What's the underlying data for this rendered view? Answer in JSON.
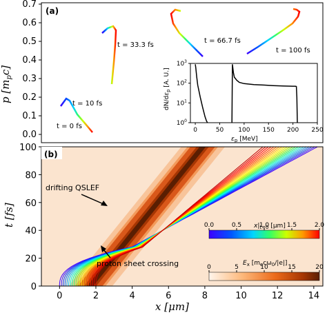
{
  "chart_data": [
    {
      "panel_label": "(a)",
      "type": "line",
      "ylabel": "p [m_pc]",
      "ylim": [
        0,
        0.7
      ],
      "yticks": [
        "0.0",
        "0.1",
        "0.2",
        "0.3",
        "0.4",
        "0.5",
        "0.6",
        "0.7"
      ],
      "phase_space_snapshots": [
        {
          "label": "t = 0 fs"
        },
        {
          "label": "t = 10 fs"
        },
        {
          "label": "t = 33.3 fs"
        },
        {
          "label": "t = 66.7 fs"
        },
        {
          "label": "t = 100 fs"
        }
      ],
      "colorscale": "rainbow"
    },
    {
      "panel_label": "inset",
      "type": "line",
      "xlabel": "ε_p [MeV]",
      "ylabel": "dN/dε_p [A. U.]",
      "yscale": "log",
      "xlim": [
        -10,
        250
      ],
      "ylim": [
        1,
        1000
      ],
      "xticks": [
        "0",
        "50",
        "100",
        "150",
        "200",
        "250"
      ],
      "yticks": [
        "10^0",
        "10^1",
        "10^2",
        "10^3"
      ],
      "series": [
        {
          "x": [
            0,
            1,
            3,
            5,
            10,
            15,
            20,
            23,
            25
          ],
          "y": [
            900,
            600,
            200,
            80,
            20,
            6,
            2,
            1.2,
            0.9
          ]
        },
        {
          "x": [
            75,
            76,
            78,
            80,
            85,
            90,
            100,
            120,
            140,
            160,
            180,
            200,
            205,
            207,
            208,
            209
          ],
          "y": [
            0.9,
            900,
            350,
            200,
            140,
            110,
            95,
            85,
            80,
            75,
            72,
            70,
            70,
            68,
            20,
            0.9
          ]
        }
      ]
    },
    {
      "panel_label": "(b)",
      "type": "heatmap",
      "xlabel": "x [μm]",
      "ylabel": "t [fs]",
      "xlim": [
        -1,
        14.5
      ],
      "ylim": [
        0,
        100
      ],
      "xticks": [
        "0",
        "2",
        "4",
        "6",
        "8",
        "10",
        "12",
        "14"
      ],
      "yticks": [
        "0",
        "20",
        "40",
        "60",
        "80",
        "100"
      ],
      "annotations": [
        "drifting QSLEF",
        "proton sheet crossing"
      ],
      "colorbars": [
        {
          "label": "x|_{t=0} [μm]",
          "range": [
            0,
            2
          ],
          "ticks": [
            "0.0",
            "0.5",
            "1.0",
            "1.5",
            "2.0"
          ],
          "cmap": "rainbow"
        },
        {
          "label": "E_x [m_ecω_0/|e|]",
          "range": [
            0,
            20
          ],
          "ticks": [
            "0",
            "5",
            "10",
            "15",
            "20"
          ],
          "cmap": "oranges"
        }
      ],
      "trajectories": {
        "initial_positions_um": [
          0.0,
          0.1,
          0.2,
          0.3,
          0.4,
          0.5,
          0.6,
          0.7,
          0.8,
          0.9,
          1.0,
          1.1,
          1.2,
          1.3,
          1.4,
          1.5,
          1.6,
          1.7,
          1.8,
          1.9,
          2.0
        ],
        "x_at_t100_um": [
          14.2,
          14.05,
          13.9,
          13.75,
          13.6,
          13.45,
          13.3,
          13.15,
          13.0,
          12.85,
          12.7,
          12.55,
          12.4,
          12.25,
          12.1,
          11.95,
          11.8,
          11.65,
          11.5,
          11.35,
          11.2
        ]
      },
      "field_band": {
        "x_at_t0_um": 1.6,
        "x_at_t100_um": 7.8,
        "peak": 20
      }
    }
  ]
}
